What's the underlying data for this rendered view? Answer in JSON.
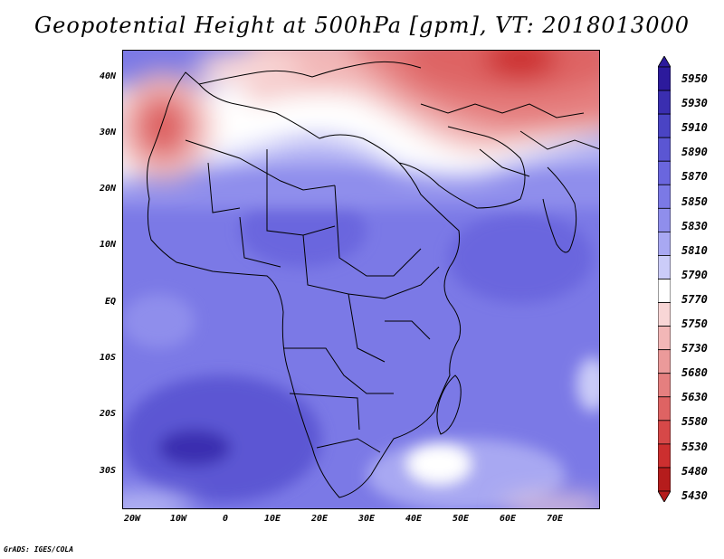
{
  "title": "Geopotential Height at 500hPa [gpm], VT: 2018013000",
  "credit": "GrADS: IGES/COLA",
  "y_axis": [
    "40N",
    "30N",
    "20N",
    "10N",
    "EQ",
    "10S",
    "20S",
    "30S"
  ],
  "x_axis": [
    "20W",
    "10W",
    "0",
    "10E",
    "20E",
    "30E",
    "40E",
    "50E",
    "60E",
    "70E"
  ],
  "colorbar": {
    "labels": [
      "5950",
      "5930",
      "5910",
      "5890",
      "5870",
      "5850",
      "5830",
      "5810",
      "5790",
      "5770",
      "5750",
      "5730",
      "5680",
      "5630",
      "5580",
      "5530",
      "5480",
      "5430"
    ],
    "colors": [
      "#2c1a9c",
      "#3a2eb0",
      "#4a44c4",
      "#5b56d3",
      "#6a66de",
      "#7b79e6",
      "#8f8eec",
      "#a8a8f2",
      "#cbccf8",
      "#ffffff",
      "#f8d6d6",
      "#f2b7b7",
      "#eb9a9a",
      "#e57f7f",
      "#de6363",
      "#d64848",
      "#cc2f2f",
      "#b51c1c"
    ]
  },
  "map": {
    "region": "Africa",
    "extent": "22W-80E, 37S-45N"
  }
}
